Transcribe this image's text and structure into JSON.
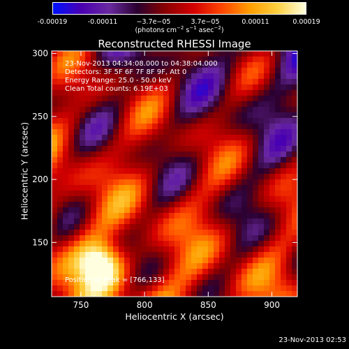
{
  "colors": {
    "colormap": [
      "#0010ff",
      "#4b00b0",
      "#6a2aa0",
      "#2a0030",
      "#8a0000",
      "#d40000",
      "#ff4400",
      "#ff9c00",
      "#ffd040",
      "#ffffe0"
    ]
  },
  "chart_data": {
    "type": "heatmap",
    "title": "Reconstructed RHESSI Image",
    "xlabel": "Heliocentric X (arcsec)",
    "ylabel": "Heliocentric Y (arcsec)",
    "xlim": [
      727,
      920
    ],
    "ylim": [
      107,
      302
    ],
    "xticks": [
      750,
      800,
      850,
      900
    ],
    "yticks": [
      150,
      200,
      250,
      300
    ],
    "annotations": [
      "23-Nov-2013 04:34:08.000 to 04:38:04.000",
      "Detectors: 3F 5F 6F 7F 8F 9F, Att 0",
      "Energy Range: 25.0 - 50.0 keV",
      "Clean    Total counts: 6.19E+03"
    ],
    "peak_label": "Position of Peak = [766,133]",
    "peak": [
      766,
      133
    ],
    "colorbar": {
      "range": [
        -0.00019,
        0.00019
      ],
      "ticks": [
        "-0.00019",
        "-0.00011",
        "−3.7e−05",
        "3.7e−05",
        "0.00011",
        "0.00019"
      ],
      "unit_prefix": "(photons cm",
      "unit_exp1": "−2",
      "unit_mid": " s",
      "unit_exp2": "−1",
      "unit_mid2": " asec",
      "unit_exp3": "−2",
      "unit_suffix": ")"
    },
    "grid": false
  },
  "timestamp": "23-Nov-2013 02:53"
}
